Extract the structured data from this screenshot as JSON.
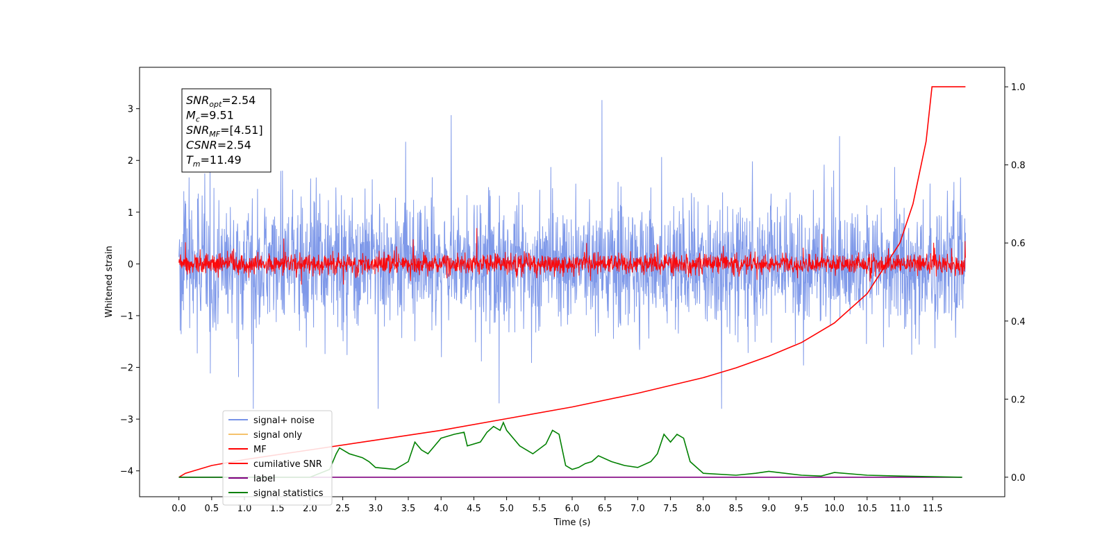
{
  "chart_data": {
    "type": "line",
    "xlabel": "Time (s)",
    "ylabel": "Whitened strain",
    "xlim": [
      -0.6,
      12.6
    ],
    "ylim": [
      -4.5,
      3.8
    ],
    "y2lim": [
      -0.05,
      1.05
    ],
    "x_ticks": [
      "0.0",
      "0.5",
      "1.0",
      "1.5",
      "2.0",
      "2.5",
      "3.0",
      "3.5",
      "4.0",
      "4.5",
      "5.0",
      "5.5",
      "6.0",
      "6.5",
      "7.0",
      "7.5",
      "8.0",
      "8.5",
      "9.0",
      "9.5",
      "10.0",
      "10.5",
      "11.0",
      "11.5"
    ],
    "y_ticks": [
      3,
      2,
      1,
      0,
      -1,
      -2,
      -3,
      -4
    ],
    "y2_ticks": [
      "1.0",
      "0.8",
      "0.6",
      "0.4",
      "0.2",
      "0.0"
    ],
    "stats_box": [
      {
        "base": "SNR",
        "sub": "opt",
        "value": "=2.54"
      },
      {
        "base": "M",
        "sub": "c",
        "value": "=9.51"
      },
      {
        "base": "SNR",
        "sub": "MF",
        "value": "=[4.51]"
      },
      {
        "base": "CSNR",
        "sub": "",
        "value": "=2.54"
      },
      {
        "base": "T",
        "sub": "m",
        "value": "=11.49"
      }
    ],
    "legend_placement": "lower-left",
    "series": [
      {
        "name": "signal+ noise",
        "color": "#7893e8",
        "axis": "left",
        "x_range": [
          0.0,
          12.0
        ],
        "noise_std": 1.1,
        "envelope": [
          -2.8,
          3.3
        ]
      },
      {
        "name": "signal only",
        "color": "#f5c26b",
        "axis": "left",
        "values": []
      },
      {
        "name": "MF",
        "color": "#ff0000",
        "axis": "left",
        "x_range": [
          0.0,
          12.0
        ],
        "noise_std": 0.18,
        "envelope": [
          -0.4,
          0.85
        ]
      },
      {
        "name": "cumilative SNR",
        "color": "#ff0000",
        "axis": "right",
        "x": [
          0.0,
          0.1,
          0.5,
          1.0,
          2.0,
          3.0,
          4.0,
          5.0,
          6.0,
          7.0,
          8.0,
          8.5,
          9.0,
          9.5,
          10.0,
          10.5,
          11.0,
          11.2,
          11.4,
          11.49,
          12.0
        ],
        "y": [
          0.0,
          0.01,
          0.03,
          0.045,
          0.07,
          0.095,
          0.12,
          0.15,
          0.18,
          0.215,
          0.255,
          0.28,
          0.31,
          0.345,
          0.395,
          0.47,
          0.6,
          0.7,
          0.86,
          1.0,
          1.0
        ]
      },
      {
        "name": "label",
        "color": "#800080",
        "axis": "right",
        "x": [
          0.0,
          11.95
        ],
        "y": [
          0.0,
          0.0
        ]
      },
      {
        "name": "signal statistics",
        "color": "#008000",
        "axis": "right",
        "x": [
          0.0,
          1.0,
          2.0,
          2.3,
          2.4,
          2.45,
          2.6,
          2.8,
          2.9,
          3.0,
          3.3,
          3.5,
          3.6,
          3.7,
          3.8,
          4.0,
          4.2,
          4.35,
          4.4,
          4.6,
          4.7,
          4.8,
          4.9,
          4.95,
          5.0,
          5.2,
          5.4,
          5.6,
          5.7,
          5.8,
          5.9,
          6.0,
          6.1,
          6.2,
          6.3,
          6.4,
          6.6,
          6.8,
          7.0,
          7.2,
          7.3,
          7.4,
          7.5,
          7.6,
          7.7,
          7.8,
          8.0,
          8.5,
          8.8,
          9.0,
          9.5,
          9.8,
          10.0,
          10.5,
          11.0,
          11.95
        ],
        "y": [
          0.0,
          0.0,
          0.0,
          0.02,
          0.06,
          0.075,
          0.06,
          0.05,
          0.04,
          0.025,
          0.02,
          0.04,
          0.09,
          0.07,
          0.06,
          0.1,
          0.11,
          0.115,
          0.08,
          0.09,
          0.115,
          0.13,
          0.12,
          0.14,
          0.12,
          0.08,
          0.06,
          0.085,
          0.12,
          0.11,
          0.03,
          0.02,
          0.025,
          0.035,
          0.04,
          0.055,
          0.04,
          0.03,
          0.025,
          0.04,
          0.06,
          0.11,
          0.09,
          0.11,
          0.1,
          0.04,
          0.01,
          0.005,
          0.01,
          0.015,
          0.005,
          0.003,
          0.012,
          0.005,
          0.003,
          0.0
        ]
      }
    ]
  }
}
